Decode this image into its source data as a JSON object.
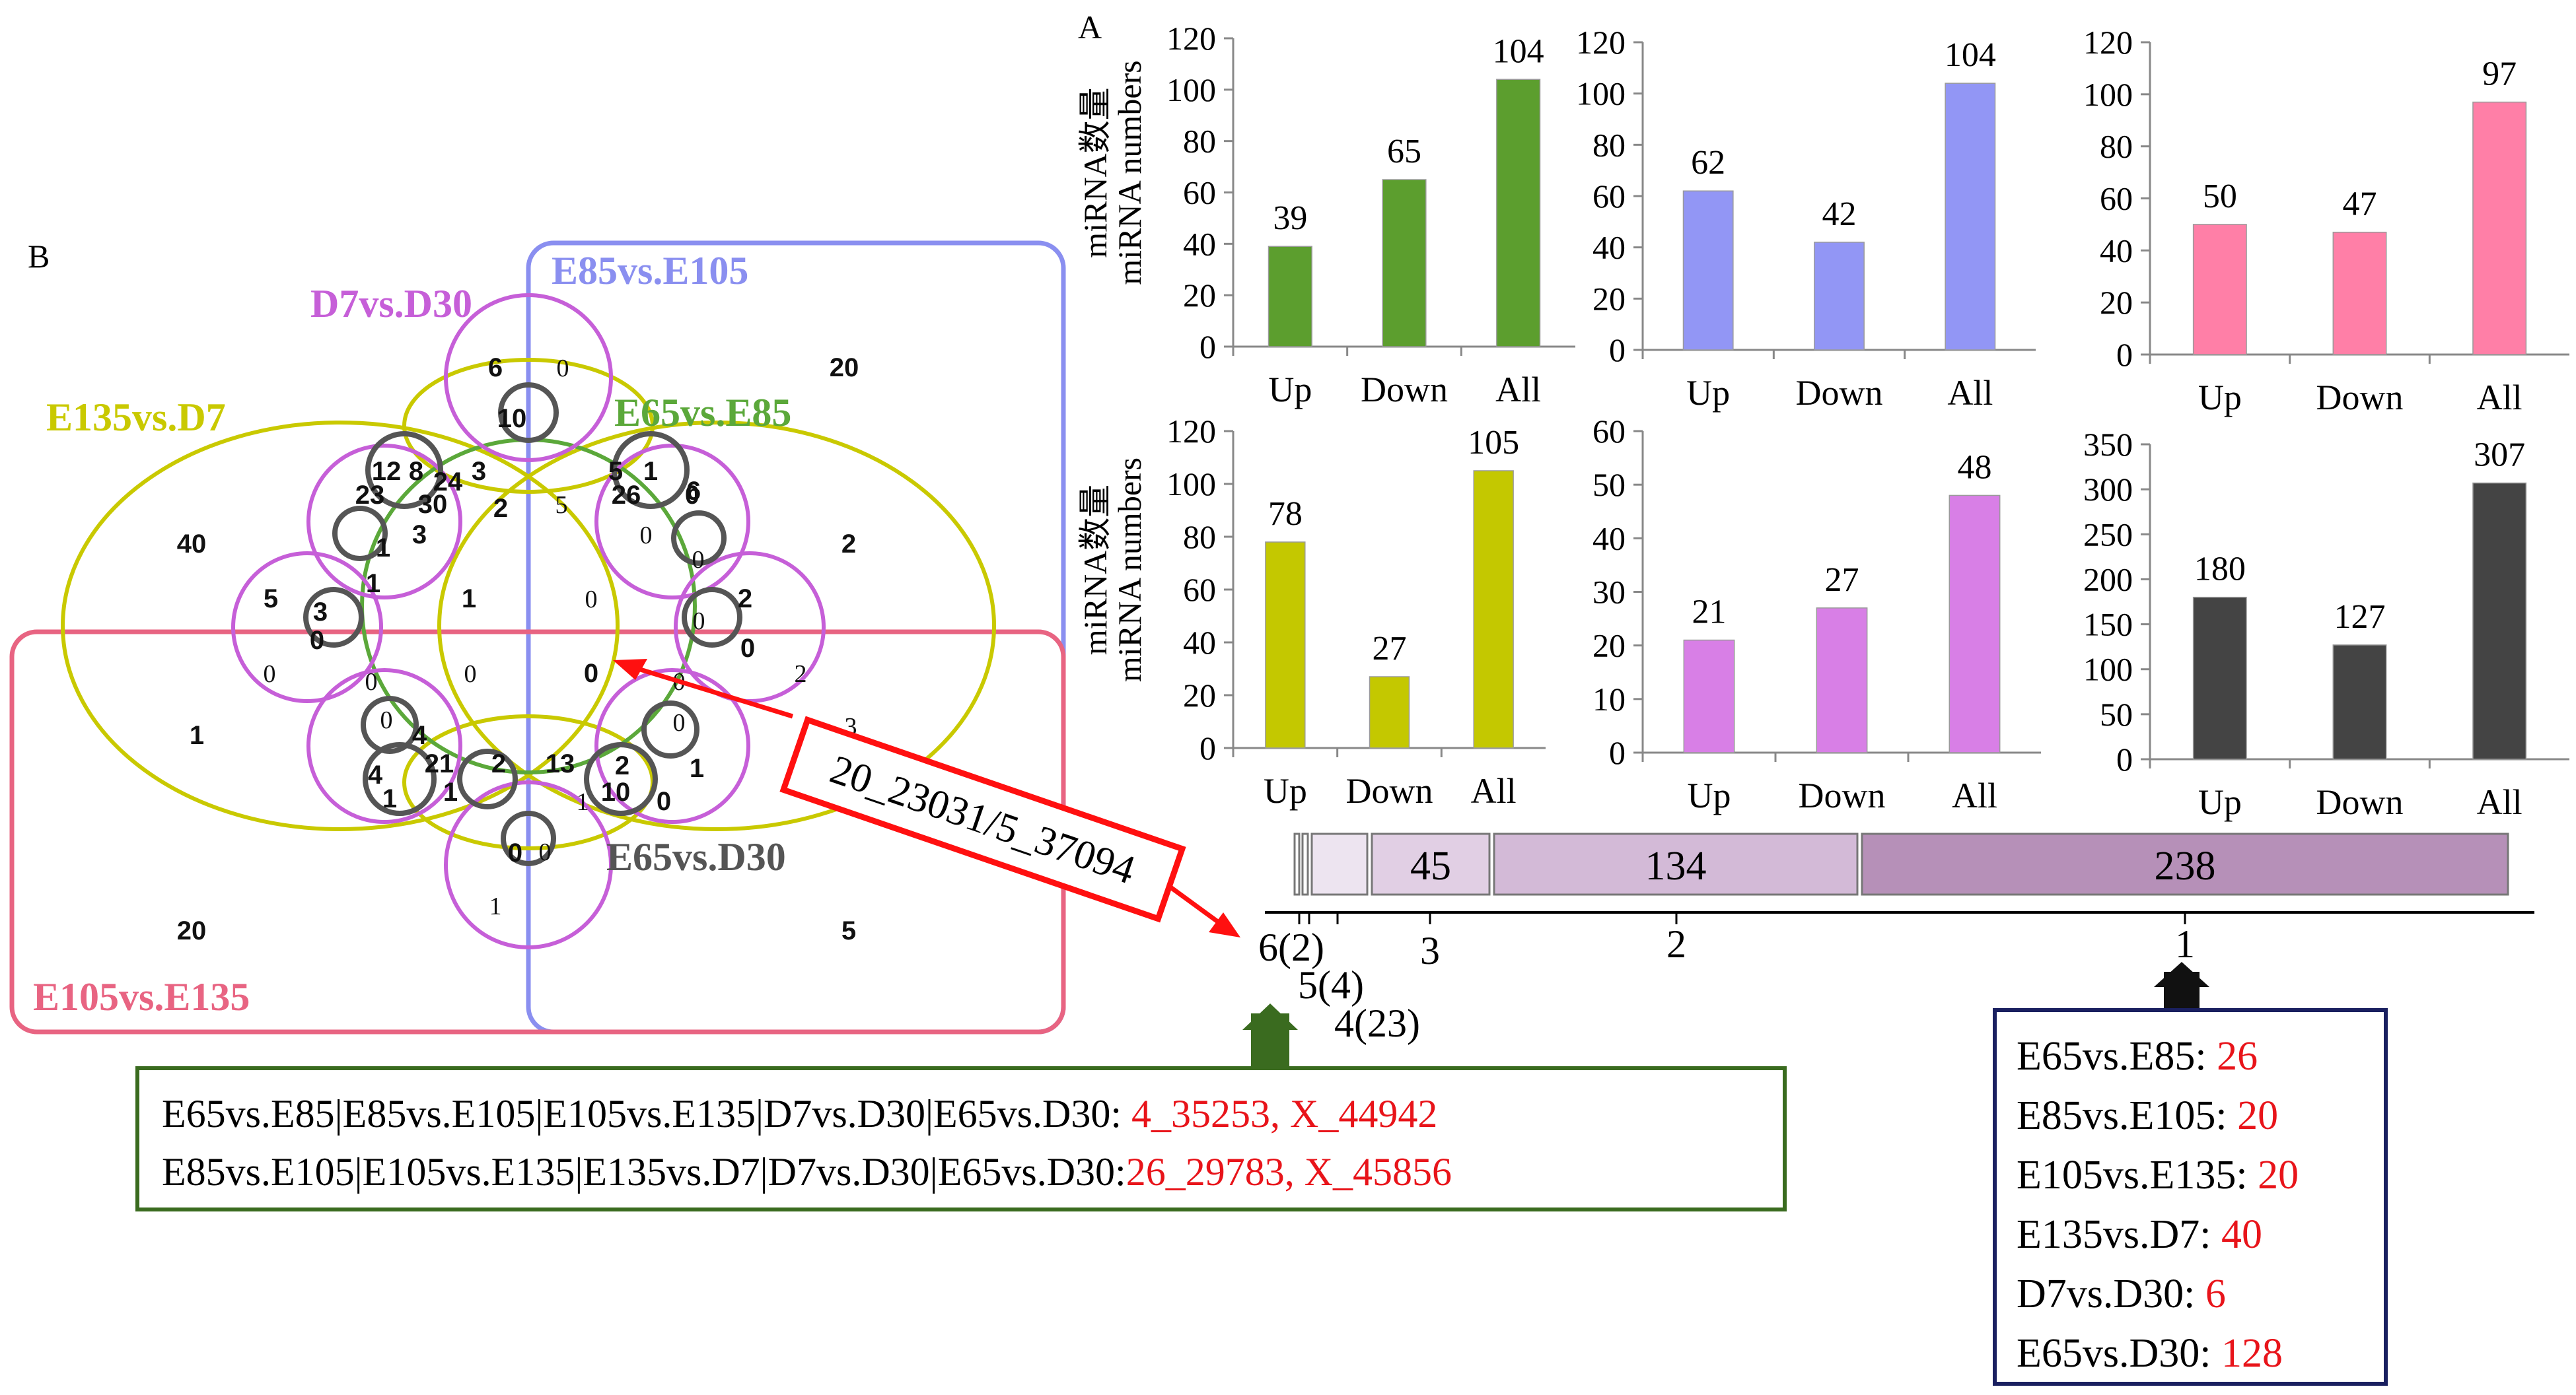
{
  "panel_labels": {
    "a": "A",
    "b": "B"
  },
  "chart_data": [
    {
      "type": "bar",
      "categories": [
        "Up",
        "Down",
        "All"
      ],
      "values": [
        39,
        65,
        104
      ],
      "ylim": [
        0,
        120
      ],
      "ticks": [
        0,
        20,
        40,
        60,
        80,
        100,
        120
      ],
      "ylabel_lines": [
        "miRNA数量",
        "miRNA numbers"
      ],
      "color": "#5c9e2e"
    },
    {
      "type": "bar",
      "categories": [
        "Up",
        "Down",
        "All"
      ],
      "values": [
        62,
        42,
        104
      ],
      "ylim": [
        0,
        120
      ],
      "ticks": [
        0,
        20,
        40,
        60,
        80,
        100,
        120
      ],
      "ylabel_lines": [],
      "color": "#9296f5"
    },
    {
      "type": "bar",
      "categories": [
        "Up",
        "Down",
        "All"
      ],
      "values": [
        50,
        47,
        97
      ],
      "ylim": [
        0,
        120
      ],
      "ticks": [
        0,
        20,
        40,
        60,
        80,
        100,
        120
      ],
      "ylabel_lines": [],
      "color": "#ff7fa7"
    },
    {
      "type": "bar",
      "categories": [
        "Up",
        "Down",
        "All"
      ],
      "values": [
        78,
        27,
        105
      ],
      "ylim": [
        0,
        120
      ],
      "ticks": [
        0,
        20,
        40,
        60,
        80,
        100,
        120
      ],
      "ylabel_lines": [
        "miRNA数量",
        "miRNA numbers"
      ],
      "color": "#c4c800"
    },
    {
      "type": "bar",
      "categories": [
        "Up",
        "Down",
        "All"
      ],
      "values": [
        21,
        27,
        48
      ],
      "ylim": [
        0,
        60
      ],
      "ticks": [
        0,
        10,
        20,
        30,
        40,
        50,
        60
      ],
      "ylabel_lines": [],
      "color": "#d87fe6"
    },
    {
      "type": "bar",
      "categories": [
        "Up",
        "Down",
        "All"
      ],
      "values": [
        180,
        127,
        307
      ],
      "ylim": [
        0,
        350
      ],
      "ticks": [
        0,
        50,
        100,
        150,
        200,
        250,
        300,
        350
      ],
      "ylabel_lines": [],
      "color": "#444444"
    },
    {
      "type": "bar",
      "orientation": "horizontal-stacked",
      "segments": [
        {
          "value": 1,
          "label": ""
        },
        {
          "value": 1,
          "label": ""
        },
        {
          "value": 8,
          "label": ""
        },
        {
          "value": 45,
          "label": "45"
        },
        {
          "value": 134,
          "label": "134"
        },
        {
          "value": 238,
          "label": "238"
        }
      ],
      "axis_labels": [
        {
          "text": "6(2)"
        },
        {
          "text": "5(4)"
        },
        {
          "text": "4(23)"
        },
        {
          "text": "3"
        },
        {
          "text": "2"
        },
        {
          "text": "1"
        }
      ]
    }
  ],
  "venn": {
    "sets": [
      {
        "name": "E85vs.E105",
        "color": "#8a8ff0"
      },
      {
        "name": "D7vs.D30",
        "color": "#c65fd8"
      },
      {
        "name": "E135vs.D7",
        "color": "#c9c900"
      },
      {
        "name": "E65vs.E85",
        "color": "#5ba83a"
      },
      {
        "name": "E65vs.D30",
        "color": "#555555"
      },
      {
        "name": "E105vs.E135",
        "color": "#e86482"
      }
    ],
    "region_counts": [
      "20",
      "40",
      "2",
      "1",
      "20",
      "5",
      "6",
      "0",
      "10",
      "12",
      "8",
      "24",
      "3",
      "23",
      "30",
      "2",
      "1",
      "3",
      "1",
      "5",
      "1",
      "6",
      "26",
      "5",
      "0",
      "0",
      "0",
      "5",
      "3",
      "0",
      "0",
      "0",
      "1",
      "0",
      "2",
      "0",
      "2",
      "0",
      "0",
      "0",
      "0",
      "0",
      "0",
      "3",
      "4",
      "4",
      "21",
      "1",
      "1",
      "2",
      "13",
      "2",
      "1",
      "10",
      "0",
      "1",
      "0",
      "0",
      "1"
    ]
  },
  "annotation": {
    "text": "20_23031/5_37094"
  },
  "pair_box": {
    "lines": [
      {
        "sets": "E65vs.E85|E85vs.E105|E105vs.E135|D7vs.D30|E65vs.D30:",
        "ids": " 4_35253, X_44942"
      },
      {
        "sets": "E85vs.E105|E105vs.E135|E135vs.D7|D7vs.D30|E65vs.D30:",
        "ids": "26_29783, X_45856"
      }
    ]
  },
  "legend_box": {
    "items": [
      {
        "label": "E65vs.E85:",
        "value": "26"
      },
      {
        "label": "E85vs.E105:",
        "value": "20"
      },
      {
        "label": "E105vs.E135:",
        "value": "20"
      },
      {
        "label": "E135vs.D7:",
        "value": "40"
      },
      {
        "label": "D7vs.D30:",
        "value": "6"
      },
      {
        "label": "E65vs.D30:",
        "value": "128"
      }
    ]
  }
}
